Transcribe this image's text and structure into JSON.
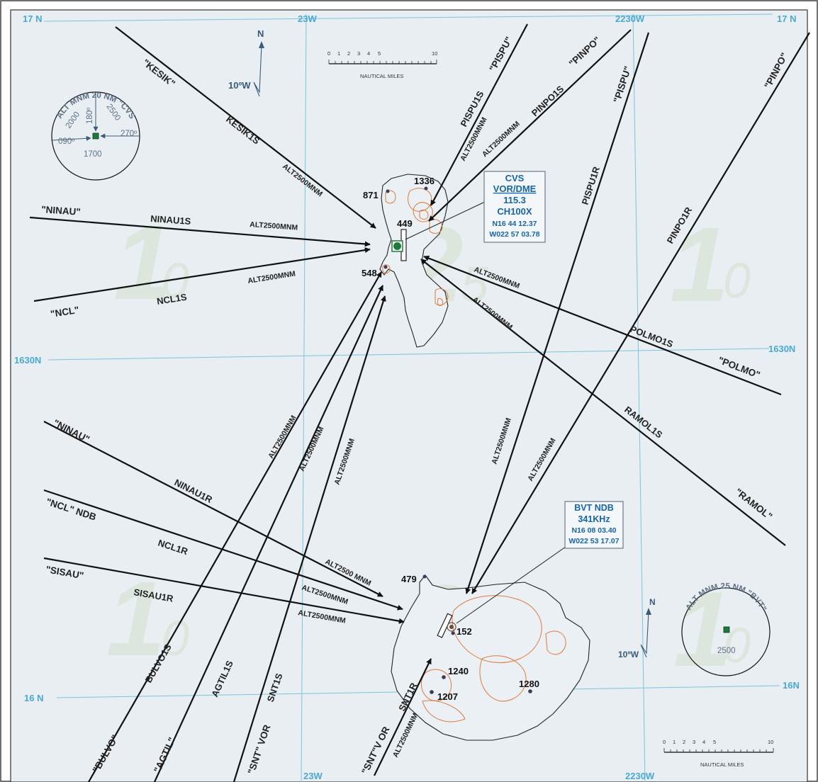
{
  "grid": {
    "lat_labels": [
      "17 N",
      "17 N",
      "1630N",
      "1630N",
      "16 N",
      "16N"
    ],
    "lon_labels": [
      "23W",
      "2230W",
      "23W",
      "2230W"
    ]
  },
  "north_arrows": [
    {
      "n": "N",
      "variation": "10ºW"
    },
    {
      "n": "N",
      "variation": "10ºW"
    }
  ],
  "scale_bars": [
    {
      "ticks": [
        "0",
        "1",
        "2",
        "3",
        "4",
        "5",
        "10"
      ],
      "unit": "NAUTICAL MILES"
    },
    {
      "ticks": [
        "0",
        "1",
        "2",
        "3",
        "4",
        "5",
        "10"
      ],
      "unit": "NAUTICAL MILES"
    }
  ],
  "msa_cvs": {
    "title": "ALT MNM 20 NM \"CVS\"",
    "alts": [
      "2000",
      "2500",
      "1700"
    ],
    "bearings": [
      "180º",
      "270º",
      "090º"
    ]
  },
  "msa_bvt": {
    "title": "ALT MNM 25 NM \"BVT\"",
    "alt": "2500"
  },
  "cvs_box": {
    "lines": [
      "CVS",
      "VOR/DME",
      "115.3",
      "CH100X",
      "N16 44 12.37",
      "W022 57 03.78"
    ]
  },
  "bvt_box": {
    "lines": [
      "BVT NDB",
      "341KHz",
      "N16 08 03.40",
      "W022 53 17.07"
    ]
  },
  "elevations": [
    "1336",
    "871",
    "449",
    "548",
    "479",
    "152",
    "1240",
    "1207",
    "1280"
  ],
  "fixes": [
    "\"KESIK\"",
    "\"PISPU\"",
    "\"PINPO\"",
    "\"PISPU\"",
    "\"PINPO\"",
    "\"NINAU\"",
    "\"NCL\"",
    "\"POLMO\"",
    "\"RAMOL\"",
    "\"NINAU\"",
    "\"NCL\" NDB",
    "\"SISAU\"",
    "\"BULVO\"",
    "\"AGTIL\"",
    "\"SNT\" VOR",
    "\"SNT\"V OR"
  ],
  "routes": [
    "KESIK1S",
    "PISPU1S",
    "PINPO1S",
    "PISPU1R",
    "PINPO1R",
    "NINAU1S",
    "NCL1S",
    "POLMO1S",
    "RAMOL1S",
    "NINAU1R",
    "NCL1R",
    "SISAU1R",
    "BULVO1S",
    "AGTIL1S",
    "SNT1S",
    "SNT1R"
  ],
  "alt_label": "ALT2500MNM",
  "alt_label_variant": "ALT2500 MNM",
  "sectors": {
    "big1": "1",
    "big2": "2",
    "sub0": "0",
    "sub5": "5"
  }
}
